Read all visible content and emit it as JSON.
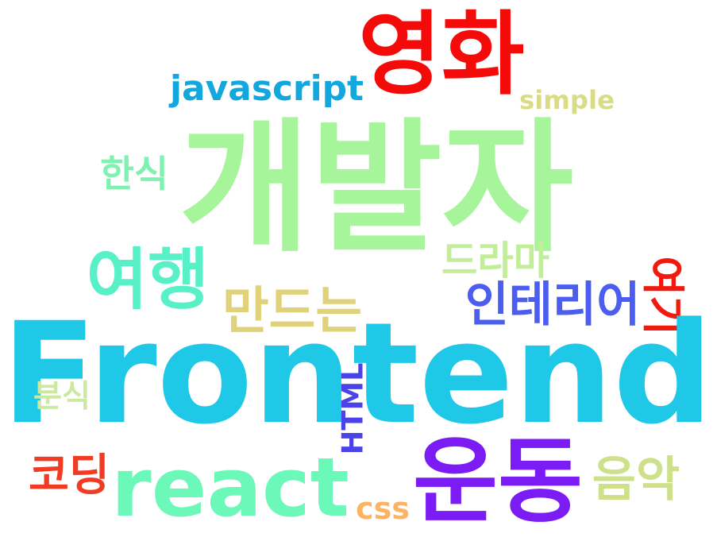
{
  "words": [
    {
      "key": "frontend",
      "text": "Frontend",
      "color": "#1ec8e6"
    },
    {
      "key": "gaebalja",
      "text": "개발자",
      "color": "#a6f59a"
    },
    {
      "key": "yeonghwa",
      "text": "영화",
      "color": "#f50a0a"
    },
    {
      "key": "react",
      "text": "react",
      "color": "#6cf8b8"
    },
    {
      "key": "undong",
      "text": "운동",
      "color": "#7b1cf5"
    },
    {
      "key": "yeohaeng",
      "text": "여행",
      "color": "#58f0c6"
    },
    {
      "key": "javascript",
      "text": "javascript",
      "color": "#12a8de"
    },
    {
      "key": "interior",
      "text": "인테리어",
      "color": "#4b5ef0"
    },
    {
      "key": "mandeuneun",
      "text": "만드는",
      "color": "#e0d27a"
    },
    {
      "key": "eumak",
      "text": "음악",
      "color": "#cfe08a"
    },
    {
      "key": "koding",
      "text": "코딩",
      "color": "#f03c24"
    },
    {
      "key": "drama",
      "text": "드라마",
      "color": "#c2ee98"
    },
    {
      "key": "hansik",
      "text": "한식",
      "color": "#7ef2b0"
    },
    {
      "key": "simple",
      "text": "simple",
      "color": "#d9dc84"
    },
    {
      "key": "yeogi",
      "text": "여기",
      "color": "#f01a0e"
    },
    {
      "key": "html",
      "text": "HTML",
      "color": "#4a44e8"
    },
    {
      "key": "bunsik",
      "text": "분식",
      "color": "#cbe9a0"
    },
    {
      "key": "css",
      "text": "css",
      "color": "#fcb462"
    }
  ]
}
